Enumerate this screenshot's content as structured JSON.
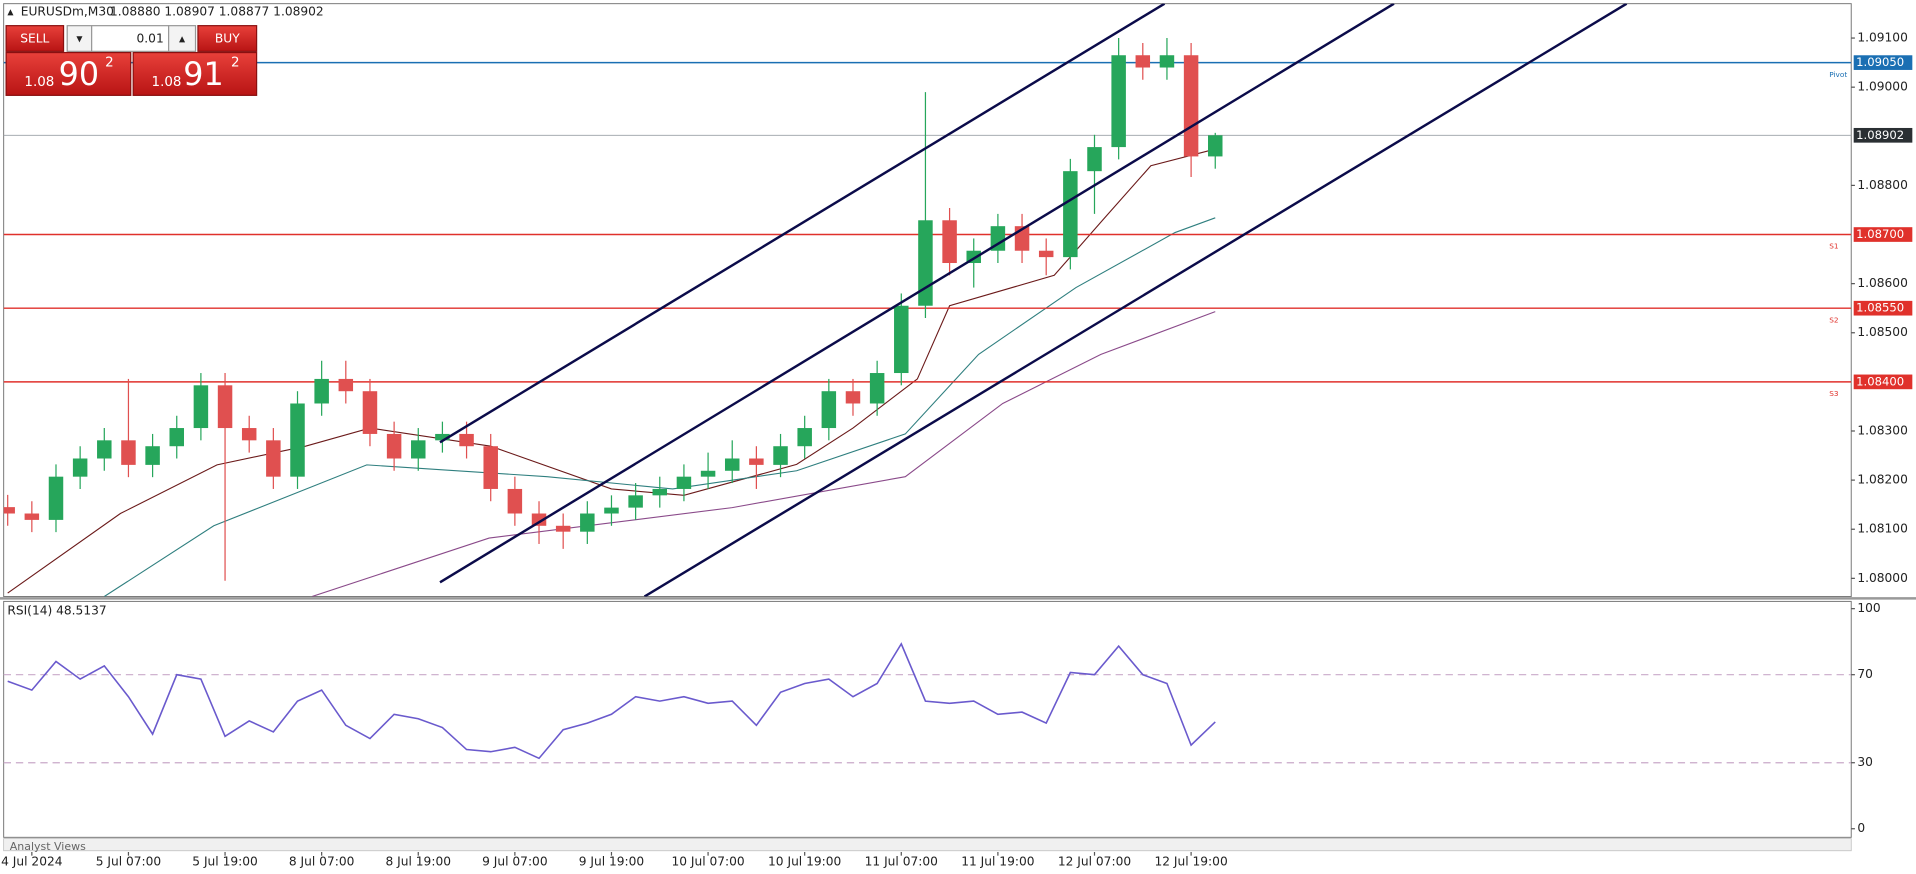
{
  "header": {
    "symbol": "EURUSDm,M30",
    "ohlc": "1.08880 1.08907 1.08877 1.08902"
  },
  "trade_panel": {
    "sell": "SELL",
    "lot": "0.01",
    "buy": "BUY",
    "bid": {
      "big": "1.08",
      "pips": "90",
      "frac": "2"
    },
    "ask": {
      "big": "1.08",
      "pips": "91",
      "frac": "2"
    }
  },
  "footer": "Analyst Views",
  "chart_data": [
    {
      "type": "candlestick",
      "up_color": "#26a65b",
      "down_color": "#e05050",
      "x": [
        -3,
        0,
        3,
        6,
        9,
        12,
        15,
        18,
        21,
        24,
        27,
        30,
        33,
        36,
        39,
        42,
        45,
        48,
        51,
        54,
        57,
        60,
        63,
        66,
        69,
        72,
        75,
        78,
        81,
        84,
        87,
        90,
        93,
        96,
        99,
        102,
        105,
        108,
        111,
        114,
        117,
        120,
        123,
        126,
        129,
        132,
        135,
        138,
        141,
        144,
        147
      ],
      "open": [
        1.08145,
        1.08132,
        1.08119,
        1.08207,
        1.08244,
        1.08281,
        1.08231,
        1.08269,
        1.08306,
        1.08393,
        1.08306,
        1.08281,
        1.08207,
        1.08356,
        1.08406,
        1.08381,
        1.08294,
        1.08244,
        1.08281,
        1.08294,
        1.08269,
        1.08182,
        1.08132,
        1.08107,
        1.08095,
        1.08132,
        1.08144,
        1.08169,
        1.08182,
        1.08207,
        1.08219,
        1.08244,
        1.08231,
        1.08269,
        1.08306,
        1.08381,
        1.08356,
        1.08418,
        1.08555,
        1.08729,
        1.08642,
        1.08667,
        1.08717,
        1.08667,
        1.08654,
        1.08829,
        1.08878,
        1.09065,
        1.0904,
        1.09065,
        1.08859
      ],
      "high": [
        1.0817,
        1.08157,
        1.08232,
        1.08269,
        1.08306,
        1.08406,
        1.08294,
        1.08331,
        1.08418,
        1.08418,
        1.08331,
        1.08306,
        1.08381,
        1.08443,
        1.08443,
        1.08406,
        1.08319,
        1.08306,
        1.08319,
        1.08319,
        1.08294,
        1.08207,
        1.08157,
        1.08132,
        1.08157,
        1.08169,
        1.08194,
        1.08207,
        1.08232,
        1.08256,
        1.08281,
        1.08269,
        1.08294,
        1.08331,
        1.08406,
        1.08406,
        1.08443,
        1.0858,
        1.0899,
        1.08754,
        1.08692,
        1.08742,
        1.08742,
        1.08692,
        1.08854,
        1.08903,
        1.091,
        1.0909,
        1.091,
        1.0909,
        1.08907
      ],
      "low": [
        1.08107,
        1.08094,
        1.08094,
        1.08182,
        1.08219,
        1.08206,
        1.08206,
        1.08244,
        1.08281,
        1.07995,
        1.08256,
        1.08182,
        1.08182,
        1.08331,
        1.08356,
        1.08269,
        1.08219,
        1.08219,
        1.08256,
        1.08244,
        1.08157,
        1.08107,
        1.0807,
        1.0806,
        1.0807,
        1.08107,
        1.08119,
        1.08144,
        1.08157,
        1.08182,
        1.08194,
        1.08182,
        1.08206,
        1.08244,
        1.08281,
        1.08331,
        1.08331,
        1.08393,
        1.0853,
        1.08617,
        1.08592,
        1.08642,
        1.08642,
        1.08617,
        1.08629,
        1.08742,
        1.08853,
        1.09015,
        1.09015,
        1.08817,
        1.08834
      ],
      "close": [
        1.08132,
        1.08119,
        1.08207,
        1.08244,
        1.08281,
        1.08231,
        1.08269,
        1.08306,
        1.08393,
        1.08306,
        1.08281,
        1.08207,
        1.08356,
        1.08406,
        1.08381,
        1.08294,
        1.08244,
        1.08281,
        1.08294,
        1.08269,
        1.08182,
        1.08132,
        1.08107,
        1.08095,
        1.08132,
        1.08144,
        1.08169,
        1.08182,
        1.08207,
        1.08219,
        1.08244,
        1.08231,
        1.08269,
        1.08306,
        1.08381,
        1.08356,
        1.08418,
        1.08555,
        1.08729,
        1.08642,
        1.08667,
        1.08717,
        1.08667,
        1.08654,
        1.08829,
        1.08878,
        1.09065,
        1.0904,
        1.09065,
        1.08859,
        1.08902
      ],
      "series": [
        {
          "color": "#6b1a1a",
          "x": [
            -3,
            11,
            23,
            34,
            42,
            57,
            72,
            81,
            95,
            102,
            110,
            114,
            127,
            133,
            139,
            147
          ],
          "values": [
            1.0797,
            1.08132,
            1.08231,
            1.08269,
            1.08306,
            1.08269,
            1.08182,
            1.08169,
            1.08232,
            1.08306,
            1.08406,
            1.08555,
            1.08617,
            1.08729,
            1.0884,
            1.08874
          ]
        },
        {
          "color": "#2f7f7f",
          "x": [
            9,
            22.6,
            41.6,
            64,
            79.6,
            95,
            108.5,
            117.6,
            129.7,
            142,
            147
          ],
          "values": [
            1.07963,
            1.08107,
            1.08231,
            1.08207,
            1.08182,
            1.08219,
            1.08294,
            1.08456,
            1.08592,
            1.08704,
            1.08734
          ]
        },
        {
          "color": "#8a4a8a",
          "x": [
            34.8,
            56.8,
            87,
            108.5,
            120.6,
            132.8,
            147
          ],
          "values": [
            1.07963,
            1.08082,
            1.08144,
            1.08207,
            1.08356,
            1.08456,
            1.08543
          ]
        }
      ],
      "channel": {
        "color": "#0b0b4a",
        "lines": [
          {
            "x": [
              50.7,
              140.7
            ],
            "values": [
              1.08277,
              1.0917
            ]
          },
          {
            "x": [
              50.7,
              169.2
            ],
            "values": [
              1.07992,
              1.0917
            ]
          },
          {
            "x": [
              76.1,
              198.1
            ],
            "values": [
              1.07963,
              1.0917
            ]
          }
        ]
      },
      "levels": [
        {
          "value": 1.0905,
          "label": "1.09050",
          "name": "Pivot",
          "color": "#1a6fb3"
        },
        {
          "value": 1.087,
          "label": "1.08700",
          "name": "S1",
          "color": "#e0312b"
        },
        {
          "value": 1.0855,
          "label": "1.08550",
          "name": "S2",
          "color": "#e0312b"
        },
        {
          "value": 1.084,
          "label": "1.08400",
          "name": "S3",
          "color": "#e0312b"
        }
      ],
      "last_price": {
        "value": 1.08902,
        "label": "1.08902",
        "color": "#9aa0a6"
      },
      "xlim": [
        -3.5,
        226
      ],
      "xticks": [
        {
          "value": 0,
          "label": "4 Jul 2024"
        },
        {
          "value": 12,
          "label": "5 Jul 07:00"
        },
        {
          "value": 24,
          "label": "5 Jul 19:00"
        },
        {
          "value": 36,
          "label": "8 Jul 07:00"
        },
        {
          "value": 48,
          "label": "8 Jul 19:00"
        },
        {
          "value": 60,
          "label": "9 Jul 07:00"
        },
        {
          "value": 72,
          "label": "9 Jul 19:00"
        },
        {
          "value": 84,
          "label": "10 Jul 07:00"
        },
        {
          "value": 96,
          "label": "10 Jul 19:00"
        },
        {
          "value": 108,
          "label": "11 Jul 07:00"
        },
        {
          "value": 120,
          "label": "11 Jul 19:00"
        },
        {
          "value": 132,
          "label": "12 Jul 07:00"
        },
        {
          "value": 144,
          "label": "12 Jul 19:00"
        }
      ],
      "ylim": [
        1.07963,
        1.0917
      ],
      "yticks": [
        {
          "value": 1.091,
          "label": "1.09100"
        },
        {
          "value": 1.09,
          "label": "1.09000"
        },
        {
          "value": 1.088,
          "label": "1.08800"
        },
        {
          "value": 1.086,
          "label": "1.08600"
        },
        {
          "value": 1.085,
          "label": "1.08500"
        },
        {
          "value": 1.083,
          "label": "1.08300"
        },
        {
          "value": 1.082,
          "label": "1.08200"
        },
        {
          "value": 1.081,
          "label": "1.08100"
        },
        {
          "value": 1.08,
          "label": "1.08000"
        }
      ]
    },
    {
      "type": "line",
      "title": "RSI(14) 48.5137",
      "color": "#6a5acd",
      "x": [
        -3,
        0,
        3,
        6,
        9,
        12,
        15,
        18,
        21,
        24,
        27,
        30,
        33,
        36,
        39,
        42,
        45,
        48,
        51,
        54,
        57,
        60,
        63,
        66,
        69,
        72,
        75,
        78,
        81,
        84,
        87,
        90,
        93,
        96,
        99,
        102,
        105,
        108,
        111,
        114,
        117,
        120,
        123,
        126,
        129,
        132,
        135,
        138,
        141,
        144,
        147
      ],
      "values": [
        67,
        63,
        76,
        68,
        74,
        60,
        43,
        70,
        68,
        42,
        49,
        44,
        58,
        63,
        47,
        41,
        52,
        50,
        46,
        36,
        35,
        37,
        32,
        45,
        48,
        52,
        60,
        58,
        60,
        57,
        58,
        47,
        62,
        66,
        68,
        60,
        66,
        84,
        58,
        57,
        58,
        52,
        53,
        48,
        71,
        70,
        83,
        70,
        66,
        38,
        48.5137
      ],
      "levels": [
        30,
        70
      ],
      "level_color": "#c9a9c9",
      "xlim": [
        -3.5,
        226
      ],
      "ylim": [
        -3.9,
        103.3
      ],
      "yticks": [
        0,
        30,
        70,
        100
      ]
    }
  ]
}
